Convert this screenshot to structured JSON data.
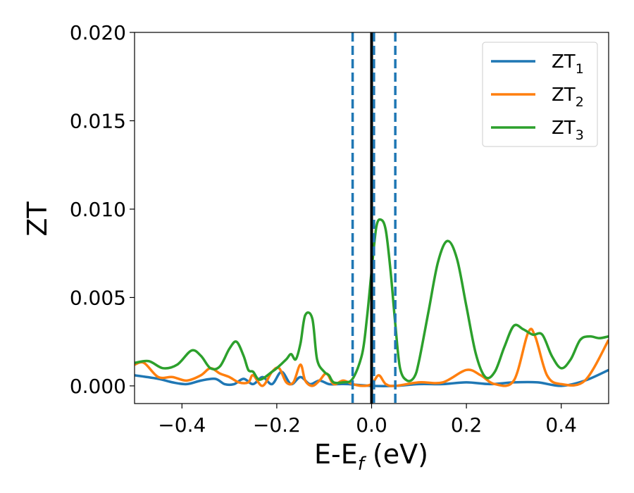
{
  "chart_data": {
    "type": "line",
    "xlabel": "E-E",
    "xlabel_sub": "f",
    "xlabel_unit": " (eV)",
    "ylabel": "ZT",
    "xlim": [
      -0.5,
      0.5
    ],
    "ylim": [
      -0.001,
      0.02
    ],
    "xticks": [
      -0.4,
      -0.2,
      0.0,
      0.2,
      0.4
    ],
    "xtick_labels": [
      "−0.4",
      "−0.2",
      "0.0",
      "0.2",
      "0.4"
    ],
    "yticks": [
      0.0,
      0.005,
      0.01,
      0.015,
      0.02
    ],
    "ytick_labels": [
      "0.000",
      "0.005",
      "0.010",
      "0.015",
      "0.020"
    ],
    "legend_position": "top-right",
    "vlines": [
      {
        "x": 0.0,
        "style": "solid",
        "color": "#000000"
      },
      {
        "x": -0.04,
        "style": "dashed",
        "color": "#1f77b4"
      },
      {
        "x": 0.005,
        "style": "dashed",
        "color": "#1f77b4"
      },
      {
        "x": 0.05,
        "style": "dashed",
        "color": "#1f77b4"
      }
    ],
    "series": [
      {
        "name": "ZT",
        "name_sub": "1",
        "color": "#1f77b4",
        "x": [
          -0.5,
          -0.45,
          -0.42,
          -0.39,
          -0.36,
          -0.33,
          -0.31,
          -0.29,
          -0.27,
          -0.25,
          -0.23,
          -0.21,
          -0.19,
          -0.17,
          -0.15,
          -0.13,
          -0.11,
          -0.09,
          -0.07,
          -0.05,
          0.0,
          0.05,
          0.1,
          0.15,
          0.2,
          0.25,
          0.3,
          0.35,
          0.4,
          0.45,
          0.5
        ],
        "values": [
          0.0006,
          0.0004,
          0.0002,
          0.0001,
          0.0003,
          0.0004,
          0.0001,
          0.0001,
          0.0004,
          0.0001,
          0.0005,
          0.0001,
          0.0008,
          0.0001,
          0.0005,
          0.0001,
          0.0003,
          0.0001,
          0.0001,
          0.0001,
          0.0,
          0.0,
          0.0001,
          0.0001,
          0.0002,
          0.0001,
          0.0002,
          0.0002,
          0.0,
          0.0003,
          0.0009
        ]
      },
      {
        "name": "ZT",
        "name_sub": "2",
        "color": "#ff7f0e",
        "x": [
          -0.5,
          -0.48,
          -0.45,
          -0.42,
          -0.39,
          -0.36,
          -0.34,
          -0.32,
          -0.3,
          -0.28,
          -0.26,
          -0.25,
          -0.23,
          -0.21,
          -0.195,
          -0.18,
          -0.165,
          -0.15,
          -0.14,
          -0.125,
          -0.11,
          -0.095,
          -0.08,
          -0.06,
          -0.04,
          -0.02,
          0.0,
          0.015,
          0.03,
          0.05,
          0.1,
          0.15,
          0.2,
          0.23,
          0.26,
          0.3,
          0.33,
          0.345,
          0.37,
          0.4,
          0.45,
          0.5
        ],
        "values": [
          0.0012,
          0.0013,
          0.0005,
          0.0005,
          0.0003,
          0.0006,
          0.001,
          0.0007,
          0.0005,
          0.0002,
          0.0002,
          0.0006,
          0.0,
          0.0008,
          0.001,
          0.0002,
          0.0002,
          0.0012,
          0.0003,
          0.0,
          0.0003,
          0.0007,
          0.0001,
          0.0003,
          0.0001,
          0.0,
          0.0001,
          0.0006,
          0.0001,
          0.0,
          0.0002,
          0.0002,
          0.0009,
          0.0006,
          0.0001,
          0.0003,
          0.003,
          0.0028,
          0.0006,
          0.0001,
          0.0003,
          0.0026
        ]
      },
      {
        "name": "ZT",
        "name_sub": "3",
        "color": "#2ca02c",
        "x": [
          -0.5,
          -0.47,
          -0.44,
          -0.41,
          -0.38,
          -0.36,
          -0.34,
          -0.32,
          -0.3,
          -0.285,
          -0.27,
          -0.26,
          -0.25,
          -0.24,
          -0.23,
          -0.21,
          -0.2,
          -0.18,
          -0.17,
          -0.16,
          -0.15,
          -0.14,
          -0.125,
          -0.115,
          -0.1,
          -0.09,
          -0.08,
          -0.06,
          -0.04,
          -0.02,
          -0.01,
          0.0,
          0.01,
          0.02,
          0.03,
          0.04,
          0.05,
          0.06,
          0.075,
          0.09,
          0.1,
          0.12,
          0.14,
          0.16,
          0.18,
          0.2,
          0.22,
          0.24,
          0.26,
          0.28,
          0.3,
          0.32,
          0.34,
          0.36,
          0.38,
          0.4,
          0.42,
          0.44,
          0.46,
          0.48,
          0.5
        ],
        "values": [
          0.0013,
          0.0014,
          0.001,
          0.0012,
          0.002,
          0.0017,
          0.001,
          0.0011,
          0.0021,
          0.0025,
          0.0017,
          0.0009,
          0.0008,
          0.0004,
          0.0004,
          0.0008,
          0.001,
          0.0015,
          0.0018,
          0.0015,
          0.0024,
          0.004,
          0.0038,
          0.0015,
          0.0008,
          0.0006,
          0.0002,
          0.0002,
          0.0004,
          0.0018,
          0.0038,
          0.0065,
          0.009,
          0.0094,
          0.0088,
          0.0065,
          0.0035,
          0.001,
          0.0003,
          0.0005,
          0.0014,
          0.0042,
          0.007,
          0.0082,
          0.0072,
          0.0045,
          0.0018,
          0.0005,
          0.0008,
          0.0022,
          0.0034,
          0.0032,
          0.0029,
          0.0029,
          0.0017,
          0.001,
          0.0015,
          0.0026,
          0.0028,
          0.0027,
          0.0028
        ]
      }
    ]
  }
}
